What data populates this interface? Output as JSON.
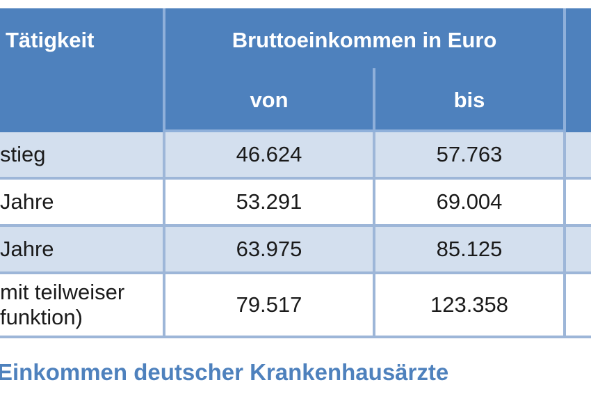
{
  "table": {
    "header": {
      "col_activity": "Tätigkeit",
      "col_income": "Bruttoeinkommen in Euro",
      "sub_from": "von",
      "sub_to": "bis"
    },
    "rows": [
      {
        "label_line1": "stieg",
        "label_line2": "",
        "from": "46.624",
        "to": "57.763"
      },
      {
        "label_line1": "Jahre",
        "label_line2": "",
        "from": "53.291",
        "to": "69.004"
      },
      {
        "label_line1": "Jahre",
        "label_line2": "",
        "from": "63.975",
        "to": "85.125"
      },
      {
        "label_line1": "mit teilweiser",
        "label_line2": "funktion)",
        "from": "79.517",
        "to": "123.358"
      }
    ]
  },
  "caption": "Einkommen deutscher Krankenhausärzte",
  "colors": {
    "header_bg": "#4e81bd",
    "header_text": "#ffffff",
    "band_bg": "#d3dfee",
    "border": "#9db6d8",
    "caption_text": "#4e81bd"
  }
}
